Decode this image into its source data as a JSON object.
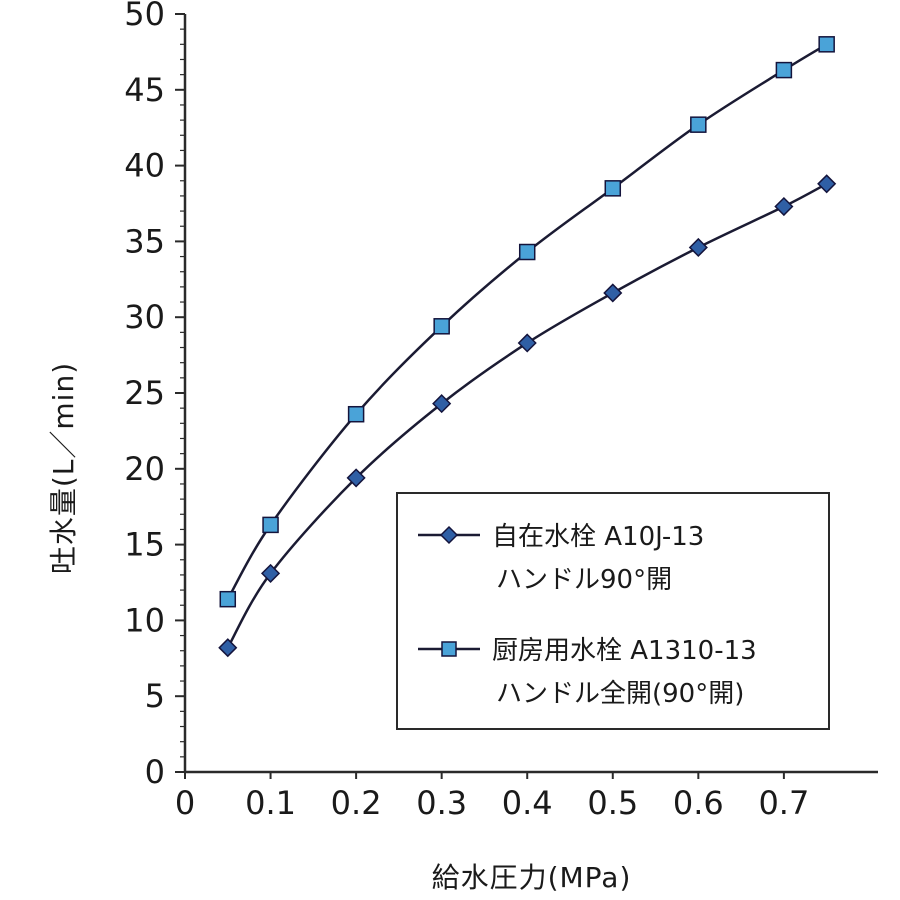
{
  "chart_data": {
    "type": "line",
    "title": "",
    "xlabel": "給水圧力(MPa)",
    "ylabel": "吐水量(L／min)",
    "xlim": [
      0,
      0.81
    ],
    "ylim": [
      0,
      50
    ],
    "x_ticks": [
      0,
      0.1,
      0.2,
      0.3,
      0.4,
      0.5,
      0.6,
      0.7
    ],
    "x_tick_labels": [
      "0",
      "0.1",
      "0.2",
      "0.3",
      "0.4",
      "0.5",
      "0.6",
      "0.7"
    ],
    "y_ticks": [
      0,
      5,
      10,
      15,
      20,
      25,
      30,
      35,
      40,
      45,
      50
    ],
    "y_tick_labels": [
      "0",
      "5",
      "10",
      "15",
      "20",
      "25",
      "30",
      "35",
      "40",
      "45",
      "50"
    ],
    "y_minor_step": 1,
    "grid": false,
    "line_color": "#1b1b33",
    "axis_color": "#2a2a2a",
    "x": [
      0.05,
      0.1,
      0.2,
      0.3,
      0.4,
      0.5,
      0.6,
      0.7,
      0.75
    ],
    "series": [
      {
        "name": "自在水栓 A10J-13 ハンドル90°開",
        "marker": "diamond",
        "marker_color": "#2f5fa5",
        "marker_edge": "#14143c",
        "values": [
          8.2,
          13.1,
          19.4,
          24.3,
          28.3,
          31.6,
          34.6,
          37.3,
          38.8
        ]
      },
      {
        "name": "厨房用水栓 A1310-13 ハンドル全開(90°開)",
        "marker": "square",
        "marker_color": "#4aa3d8",
        "marker_edge": "#14143c",
        "values": [
          11.4,
          16.3,
          23.6,
          29.4,
          34.3,
          38.5,
          42.7,
          46.3,
          48.0
        ]
      }
    ],
    "legend": {
      "position": "inside-lower-right",
      "entries": [
        {
          "line1": "自在水栓 A10J-13",
          "line2": "ハンドル90°開"
        },
        {
          "line1": "厨房用水栓 A1310-13",
          "line2": "ハンドル全開(90°開)"
        }
      ]
    }
  }
}
